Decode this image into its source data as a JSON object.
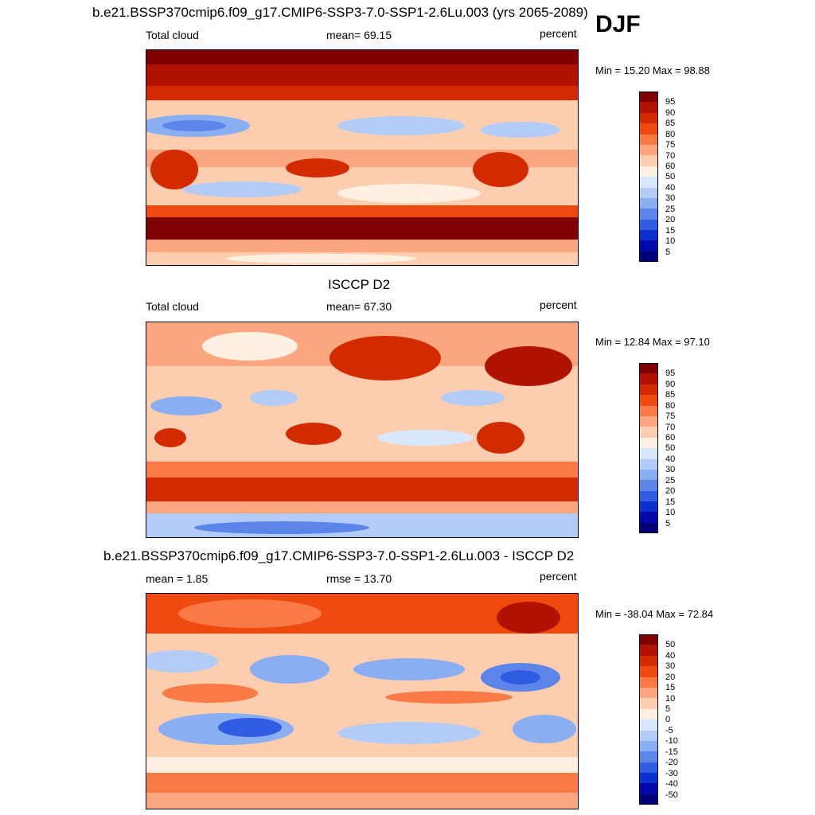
{
  "season": "DJF",
  "panels": [
    {
      "title": "b.e21.BSSP370cmip6.f09_g17.CMIP6-SSP3-7.0-SSP1-2.6Lu.003 (yrs 2065-2089)",
      "left_label": "Total cloud",
      "center_label": "mean=  69.15",
      "right_label": "percent",
      "minmax": "Min =  15.20 Max =  98.88",
      "colorbar_labels": [
        "95",
        "90",
        "85",
        "80",
        "75",
        "70",
        "60",
        "50",
        "40",
        "30",
        "25",
        "20",
        "15",
        "10",
        "5"
      ]
    },
    {
      "title": "ISCCP D2",
      "left_label": "Total cloud",
      "center_label": "mean=  67.30",
      "right_label": "percent",
      "minmax": "Min =  12.84 Max =  97.10",
      "colorbar_labels": [
        "95",
        "90",
        "85",
        "80",
        "75",
        "70",
        "60",
        "50",
        "40",
        "30",
        "25",
        "20",
        "15",
        "10",
        "5"
      ]
    },
    {
      "title": "b.e21.BSSP370cmip6.f09_g17.CMIP6-SSP3-7.0-SSP1-2.6Lu.003 - ISCCP D2",
      "left_label": "mean =   1.85",
      "center_label": "rmse =  13.70",
      "right_label": "percent",
      "minmax": "Min = -38.04 Max =  72.84",
      "colorbar_labels": [
        "50",
        "40",
        "30",
        "20",
        "15",
        "10",
        "5",
        "0",
        "-5",
        "-10",
        "-15",
        "-20",
        "-30",
        "-40",
        "-50"
      ]
    }
  ],
  "colorbar_colors": [
    "#7f0000",
    "#b21200",
    "#d42a00",
    "#ee4a10",
    "#fa7a45",
    "#fca680",
    "#fdcdb0",
    "#fff0e2",
    "#d8e8fc",
    "#b3ccf7",
    "#8aaef2",
    "#5c85ea",
    "#2f5ce0",
    "#0b30d0",
    "#0008a8",
    "#000078"
  ]
}
